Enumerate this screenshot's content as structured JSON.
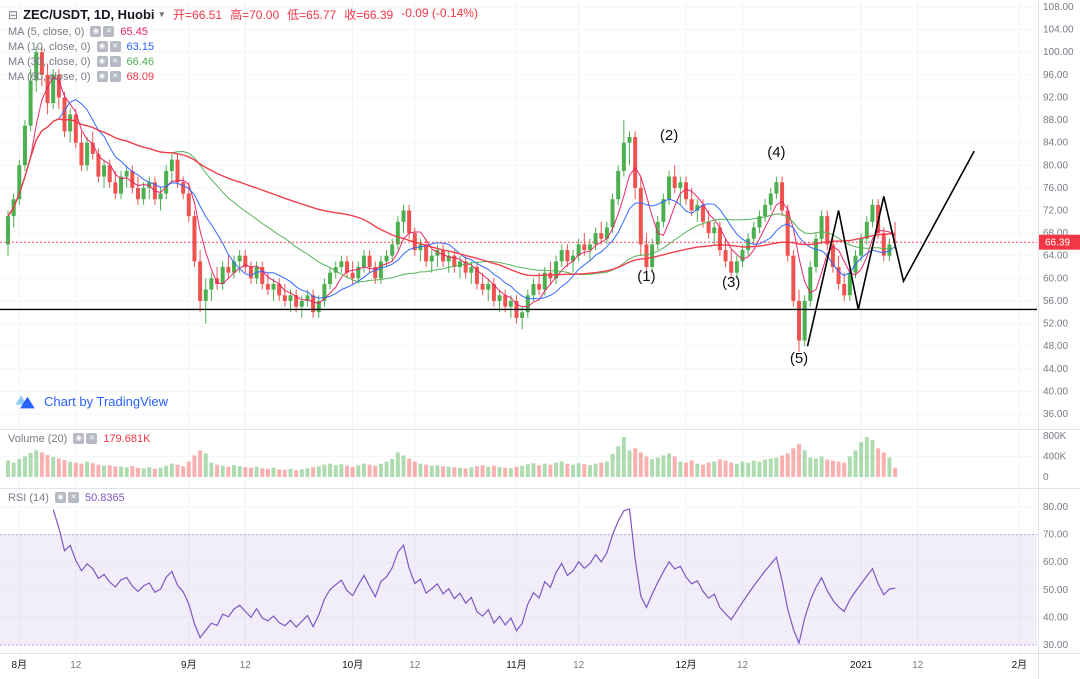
{
  "header": {
    "symbol": "ZEC/USDT, 1D, Huobi",
    "ohlc": {
      "open": "开=66.51",
      "high": "高=70.00",
      "low": "低=65.77",
      "close": "收=66.39",
      "change": "-0.09 (-0.14%)"
    },
    "change_color": "#f23645"
  },
  "indicators": {
    "ma": [
      {
        "label": "MA (5, close, 0)",
        "value": "65.45",
        "color": "#e91e63"
      },
      {
        "label": "MA (10, close, 0)",
        "value": "63.15",
        "color": "#2962ff"
      },
      {
        "label": "MA (30, close, 0)",
        "value": "66.46",
        "color": "#4caf50"
      },
      {
        "label": "MA (60, close, 0)",
        "value": "68.09",
        "color": "#f23645"
      }
    ],
    "volume": {
      "label": "Volume (20)",
      "value": "179.681K",
      "color": "#f23645"
    },
    "rsi": {
      "label": "RSI (14)",
      "value": "50.8365",
      "color": "#7e57c2"
    }
  },
  "watermark": {
    "text": "Chart by TradingView"
  },
  "chart_data": {
    "type": "candlestick",
    "title": "ZEC/USDT, 1D, Huobi",
    "price_axis": {
      "min": 36,
      "max": 108,
      "ticks": [
        108,
        104,
        100,
        96,
        92,
        88,
        84,
        80,
        76,
        72,
        68,
        64,
        60,
        56,
        52,
        48,
        44,
        40,
        36
      ]
    },
    "volume_axis": {
      "max": 800,
      "unit": "K",
      "ticks": [
        {
          "value": 800,
          "label": "800K"
        },
        {
          "value": 400,
          "label": "400K"
        },
        {
          "value": 0,
          "label": "0"
        }
      ]
    },
    "rsi_axis": {
      "ticks": [
        80,
        70,
        60,
        50,
        40,
        30
      ],
      "band": [
        30,
        70
      ]
    },
    "time_ticks": [
      {
        "label": "8月",
        "index": 2,
        "major": true
      },
      {
        "label": "12",
        "index": 12,
        "major": false
      },
      {
        "label": "9月",
        "index": 32,
        "major": true
      },
      {
        "label": "12",
        "index": 42,
        "major": false
      },
      {
        "label": "10月",
        "index": 61,
        "major": true
      },
      {
        "label": "12",
        "index": 72,
        "major": false
      },
      {
        "label": "11月",
        "index": 90,
        "major": true
      },
      {
        "label": "12",
        "index": 101,
        "major": false
      },
      {
        "label": "12月",
        "index": 120,
        "major": true
      },
      {
        "label": "12",
        "index": 130,
        "major": false
      },
      {
        "label": "2021",
        "index": 151,
        "major": true
      },
      {
        "label": "12",
        "index": 161,
        "major": false
      },
      {
        "label": "2月",
        "index": 179,
        "major": true
      }
    ],
    "ma_periods": [
      5,
      10,
      30,
      60
    ],
    "rsi_period": 14,
    "overlays": {
      "support_line_price": 54.5,
      "last_price": 66.39
    },
    "annotations": [
      {
        "text": "(1)",
        "index": 113,
        "price": 59.5
      },
      {
        "text": "(2)",
        "index": 117,
        "price": 84.5
      },
      {
        "text": "(3)",
        "index": 128,
        "price": 58.5
      },
      {
        "text": "(4)",
        "index": 136,
        "price": 81.5
      },
      {
        "text": "(5)",
        "index": 140,
        "price": 45.0
      }
    ],
    "trend_polyline": [
      [
        141.5,
        48
      ],
      [
        147,
        72
      ],
      [
        150.5,
        54.5
      ],
      [
        155,
        74.5
      ],
      [
        158.5,
        59.5
      ],
      [
        171,
        82.5
      ]
    ],
    "candles": [
      [
        66,
        72,
        64,
        71
      ],
      [
        71,
        75,
        69,
        74
      ],
      [
        74,
        81,
        73,
        80
      ],
      [
        80,
        88,
        79,
        87
      ],
      [
        87,
        97,
        86,
        95
      ],
      [
        95,
        101,
        93,
        100
      ],
      [
        100,
        101,
        94,
        96
      ],
      [
        96,
        98,
        89,
        91
      ],
      [
        91,
        97,
        90,
        96
      ],
      [
        96,
        97,
        90,
        92
      ],
      [
        92,
        93,
        85,
        86
      ],
      [
        86,
        90,
        84,
        89
      ],
      [
        89,
        90,
        83,
        84
      ],
      [
        84,
        86,
        79,
        80
      ],
      [
        80,
        85,
        79,
        84
      ],
      [
        84,
        86,
        81,
        82
      ],
      [
        82,
        83,
        77,
        78
      ],
      [
        78,
        81,
        76,
        80
      ],
      [
        80,
        81,
        76,
        77
      ],
      [
        77,
        79,
        74,
        75
      ],
      [
        75,
        79,
        74,
        78
      ],
      [
        78,
        80,
        76,
        79
      ],
      [
        79,
        80,
        75,
        76
      ],
      [
        76,
        78,
        73,
        74
      ],
      [
        74,
        77,
        73,
        76
      ],
      [
        76,
        78,
        74,
        77
      ],
      [
        77,
        78,
        73,
        74
      ],
      [
        74,
        76,
        72,
        75
      ],
      [
        75,
        80,
        74,
        79
      ],
      [
        79,
        82,
        77,
        81
      ],
      [
        81,
        82,
        76,
        77
      ],
      [
        77,
        78,
        74,
        75
      ],
      [
        75,
        77,
        70,
        71
      ],
      [
        71,
        72,
        62,
        63
      ],
      [
        63,
        65,
        54,
        56
      ],
      [
        56,
        60,
        52,
        58
      ],
      [
        58,
        61,
        56,
        60
      ],
      [
        60,
        62,
        58,
        59
      ],
      [
        59,
        63,
        58,
        62
      ],
      [
        62,
        64,
        60,
        61
      ],
      [
        61,
        64,
        60,
        63
      ],
      [
        63,
        65,
        61,
        64
      ],
      [
        64,
        65,
        61,
        62
      ],
      [
        62,
        63,
        59,
        60
      ],
      [
        60,
        63,
        59,
        62
      ],
      [
        62,
        63,
        58,
        59
      ],
      [
        59,
        61,
        57,
        58
      ],
      [
        58,
        60,
        56,
        59
      ],
      [
        59,
        60,
        56,
        57
      ],
      [
        57,
        59,
        55,
        56
      ],
      [
        56,
        58,
        54,
        57
      ],
      [
        57,
        58,
        54,
        55
      ],
      [
        55,
        57,
        53,
        56
      ],
      [
        56,
        58,
        55,
        57
      ],
      [
        57,
        58,
        53,
        54
      ],
      [
        54,
        57,
        53,
        56
      ],
      [
        56,
        60,
        55,
        59
      ],
      [
        59,
        62,
        58,
        61
      ],
      [
        61,
        63,
        60,
        62
      ],
      [
        62,
        64,
        61,
        63
      ],
      [
        63,
        64,
        60,
        61
      ],
      [
        61,
        63,
        59,
        60
      ],
      [
        60,
        63,
        59,
        62
      ],
      [
        62,
        65,
        61,
        64
      ],
      [
        64,
        65,
        61,
        62
      ],
      [
        62,
        63,
        59,
        60
      ],
      [
        60,
        64,
        59,
        63
      ],
      [
        63,
        65,
        62,
        64
      ],
      [
        64,
        67,
        63,
        66
      ],
      [
        66,
        71,
        65,
        70
      ],
      [
        70,
        73,
        68,
        72
      ],
      [
        72,
        73,
        67,
        68
      ],
      [
        68,
        69,
        64,
        65
      ],
      [
        65,
        67,
        63,
        66
      ],
      [
        66,
        67,
        62,
        63
      ],
      [
        63,
        65,
        61,
        64
      ],
      [
        64,
        66,
        62,
        65
      ],
      [
        65,
        66,
        62,
        63
      ],
      [
        63,
        65,
        61,
        64
      ],
      [
        64,
        65,
        61,
        62
      ],
      [
        62,
        64,
        60,
        63
      ],
      [
        63,
        64,
        60,
        61
      ],
      [
        61,
        63,
        59,
        62
      ],
      [
        62,
        63,
        58,
        59
      ],
      [
        59,
        61,
        57,
        58
      ],
      [
        58,
        60,
        56,
        59
      ],
      [
        59,
        60,
        55,
        56
      ],
      [
        56,
        58,
        54,
        57
      ],
      [
        57,
        58,
        54,
        55
      ],
      [
        55,
        57,
        53,
        56
      ],
      [
        56,
        57,
        52,
        53
      ],
      [
        53,
        55,
        51,
        54
      ],
      [
        54,
        58,
        53,
        57
      ],
      [
        57,
        60,
        56,
        59
      ],
      [
        59,
        61,
        57,
        58
      ],
      [
        58,
        62,
        57,
        61
      ],
      [
        61,
        63,
        59,
        60
      ],
      [
        60,
        64,
        59,
        63
      ],
      [
        63,
        66,
        62,
        65
      ],
      [
        65,
        66,
        62,
        63
      ],
      [
        63,
        65,
        61,
        64
      ],
      [
        64,
        67,
        63,
        66
      ],
      [
        66,
        68,
        64,
        65
      ],
      [
        65,
        67,
        63,
        66
      ],
      [
        66,
        69,
        65,
        68
      ],
      [
        68,
        70,
        66,
        67
      ],
      [
        67,
        70,
        66,
        69
      ],
      [
        69,
        75,
        68,
        74
      ],
      [
        74,
        80,
        73,
        79
      ],
      [
        79,
        88,
        78,
        84
      ],
      [
        84,
        86,
        80,
        85
      ],
      [
        85,
        86,
        74,
        76
      ],
      [
        76,
        78,
        64,
        66
      ],
      [
        66,
        68,
        60,
        62
      ],
      [
        62,
        67,
        61,
        66
      ],
      [
        66,
        71,
        65,
        70
      ],
      [
        70,
        75,
        69,
        74
      ],
      [
        74,
        79,
        73,
        78
      ],
      [
        78,
        80,
        75,
        76
      ],
      [
        76,
        78,
        73,
        77
      ],
      [
        77,
        78,
        73,
        74
      ],
      [
        74,
        76,
        71,
        72
      ],
      [
        72,
        74,
        70,
        73
      ],
      [
        73,
        74,
        69,
        70
      ],
      [
        70,
        72,
        67,
        68
      ],
      [
        68,
        70,
        66,
        69
      ],
      [
        69,
        70,
        64,
        65
      ],
      [
        65,
        67,
        62,
        63
      ],
      [
        63,
        65,
        60,
        61
      ],
      [
        61,
        64,
        60,
        63
      ],
      [
        63,
        66,
        62,
        65
      ],
      [
        65,
        68,
        64,
        67
      ],
      [
        67,
        70,
        66,
        69
      ],
      [
        69,
        72,
        68,
        71
      ],
      [
        71,
        74,
        70,
        73
      ],
      [
        73,
        76,
        72,
        75
      ],
      [
        75,
        78,
        74,
        77
      ],
      [
        77,
        78,
        71,
        72
      ],
      [
        72,
        73,
        63,
        64
      ],
      [
        64,
        65,
        55,
        56
      ],
      [
        56,
        58,
        47,
        49
      ],
      [
        49,
        57,
        48,
        56
      ],
      [
        56,
        63,
        55,
        62
      ],
      [
        62,
        68,
        61,
        67
      ],
      [
        67,
        72,
        66,
        71
      ],
      [
        71,
        72,
        65,
        66
      ],
      [
        66,
        67,
        61,
        62
      ],
      [
        62,
        64,
        58,
        59
      ],
      [
        59,
        61,
        56,
        57
      ],
      [
        57,
        62,
        56,
        61
      ],
      [
        61,
        65,
        60,
        64
      ],
      [
        64,
        68,
        63,
        67
      ],
      [
        67,
        71,
        66,
        70
      ],
      [
        70,
        74,
        69,
        73
      ],
      [
        73,
        74,
        67,
        68
      ],
      [
        68,
        69,
        63,
        64
      ],
      [
        64,
        67,
        63,
        66
      ],
      [
        66.51,
        70,
        65.77,
        66.39
      ]
    ],
    "volumes": [
      320,
      280,
      350,
      400,
      470,
      520,
      480,
      430,
      390,
      360,
      330,
      300,
      280,
      260,
      300,
      270,
      240,
      220,
      230,
      210,
      200,
      190,
      210,
      180,
      170,
      190,
      160,
      180,
      220,
      260,
      240,
      210,
      300,
      420,
      520,
      460,
      280,
      240,
      220,
      200,
      230,
      210,
      190,
      180,
      200,
      170,
      160,
      180,
      150,
      140,
      160,
      130,
      150,
      170,
      190,
      210,
      240,
      260,
      230,
      250,
      220,
      200,
      230,
      260,
      240,
      220,
      260,
      300,
      350,
      480,
      420,
      360,
      300,
      260,
      240,
      220,
      230,
      210,
      200,
      190,
      180,
      170,
      190,
      210,
      230,
      200,
      220,
      190,
      180,
      170,
      200,
      220,
      250,
      270,
      230,
      260,
      240,
      280,
      300,
      260,
      240,
      270,
      250,
      230,
      260,
      280,
      300,
      450,
      600,
      780,
      520,
      560,
      480,
      400,
      350,
      380,
      420,
      460,
      400,
      300,
      280,
      320,
      260,
      240,
      280,
      300,
      340,
      320,
      280,
      260,
      300,
      280,
      320,
      300,
      340,
      360,
      380,
      420,
      460,
      560,
      640,
      520,
      380,
      360,
      400,
      340,
      320,
      300,
      280,
      400,
      520,
      680,
      780,
      720,
      560,
      480,
      380,
      180
    ],
    "colors": {
      "up": "#4caf50",
      "down": "#ef5350",
      "vol_up": "rgba(76,175,80,0.45)",
      "vol_down": "rgba(239,83,80,0.45)",
      "ma": [
        "#e91e63",
        "#2962ff",
        "#4caf50",
        "#f23645"
      ],
      "rsi": "#7e57c2",
      "rsi_band": "rgba(126,87,194,0.10)",
      "rsi_band_border": "#c9a0dc",
      "last_price_bg": "#f23645",
      "support": "#000000",
      "drawing": "#000000",
      "grid": "#f0f3fa",
      "axis_text": "#787b86",
      "separator": "#e0e3eb"
    }
  }
}
